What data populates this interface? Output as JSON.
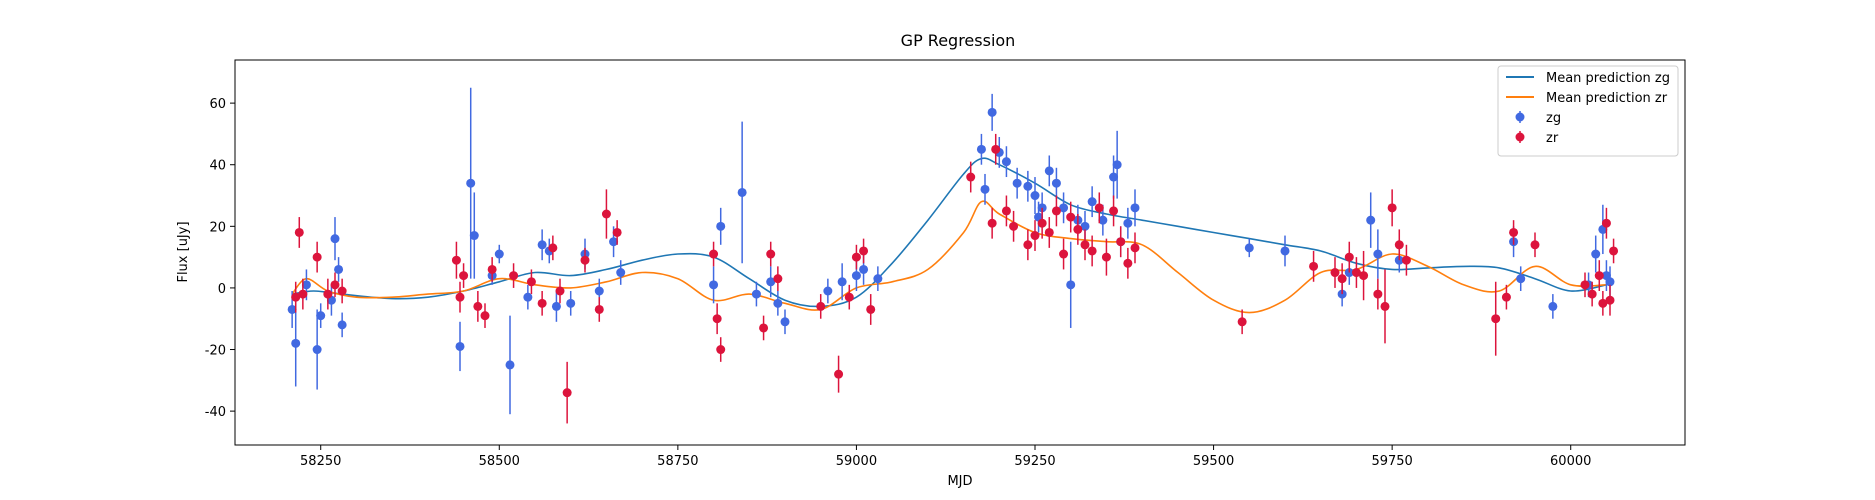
{
  "chart_data": {
    "type": "scatter",
    "title": "GP Regression",
    "xlabel": "MJD",
    "ylabel": "Flux [uJy]",
    "xlim": [
      58130,
      60160
    ],
    "ylim": [
      -51,
      74
    ],
    "xticks": [
      58250,
      58500,
      58750,
      59000,
      59250,
      59500,
      59750,
      60000
    ],
    "yticks": [
      -40,
      -20,
      0,
      20,
      40,
      60
    ],
    "grid": false,
    "legend_position": "top-right",
    "colors": {
      "zg_line": "#1f77b4",
      "zr_line": "#ff7f0e",
      "zg_points": "#4169e1",
      "zr_points": "#dc143c"
    },
    "legend": [
      {
        "label": "Mean prediction zg",
        "kind": "line",
        "color": "#1f77b4"
      },
      {
        "label": "Mean prediction zr",
        "kind": "line",
        "color": "#ff7f0e"
      },
      {
        "label": "zg",
        "kind": "errorbar",
        "color": "#4169e1"
      },
      {
        "label": "zr",
        "kind": "errorbar",
        "color": "#dc143c"
      }
    ],
    "series": [
      {
        "name": "Mean prediction zg",
        "kind": "line",
        "x": [
          58210,
          58240,
          58280,
          58320,
          58360,
          58400,
          58450,
          58500,
          58550,
          58600,
          58650,
          58700,
          58750,
          58800,
          58850,
          58900,
          58950,
          59000,
          59050,
          59100,
          59150,
          59175,
          59200,
          59250,
          59300,
          59350,
          59400,
          59450,
          59500,
          59550,
          59600,
          59650,
          59700,
          59750,
          59800,
          59850,
          59900,
          59950,
          60000,
          60050
        ],
        "y": [
          -2,
          -1,
          -2,
          -3,
          -3.5,
          -3,
          -1,
          2,
          5,
          4,
          6,
          9,
          11,
          10,
          3,
          -4,
          -6,
          -3,
          8,
          22,
          37,
          42,
          40,
          34,
          27,
          24,
          22,
          20,
          18,
          16,
          14,
          12,
          8,
          6,
          6.5,
          7,
          6.5,
          3,
          -1,
          1
        ]
      },
      {
        "name": "Mean prediction zr",
        "kind": "line",
        "x": [
          58210,
          58230,
          58260,
          58300,
          58350,
          58400,
          58450,
          58500,
          58550,
          58600,
          58650,
          58700,
          58750,
          58800,
          58850,
          58900,
          58950,
          59000,
          59050,
          59100,
          59150,
          59175,
          59200,
          59250,
          59300,
          59350,
          59400,
          59450,
          59500,
          59550,
          59600,
          59650,
          59700,
          59750,
          59800,
          59850,
          59900,
          59950,
          60000,
          60050
        ],
        "y": [
          -2,
          3,
          -1,
          -3,
          -3,
          -2,
          -1,
          3,
          1,
          0,
          2,
          5,
          3,
          -4,
          -2,
          -5,
          -7,
          0,
          2,
          6,
          18,
          28,
          24,
          18,
          16,
          15,
          14,
          5,
          -4,
          -8,
          -4,
          5,
          6,
          11,
          7,
          1,
          -1,
          7,
          1,
          1
        ]
      },
      {
        "name": "zg",
        "kind": "errorbar",
        "x": [
          58210,
          58215,
          58230,
          58245,
          58250,
          58265,
          58270,
          58275,
          58280,
          58445,
          58460,
          58465,
          58490,
          58500,
          58515,
          58540,
          58560,
          58570,
          58580,
          58600,
          58620,
          58640,
          58660,
          58670,
          58800,
          58810,
          58840,
          58860,
          58880,
          58890,
          58900,
          58960,
          58980,
          59000,
          59010,
          59030,
          59175,
          59180,
          59190,
          59200,
          59210,
          59225,
          59240,
          59250,
          59255,
          59260,
          59270,
          59280,
          59290,
          59300,
          59310,
          59320,
          59330,
          59345,
          59360,
          59365,
          59370,
          59380,
          59390,
          59550,
          59600,
          59680,
          59690,
          59720,
          59730,
          59760,
          59920,
          59930,
          59975,
          60025,
          60035,
          60045,
          60050,
          60055
        ],
        "y": [
          -7,
          -18,
          1,
          -20,
          -9,
          -4,
          16,
          6,
          -12,
          -19,
          34,
          17,
          4,
          11,
          -25,
          -3,
          14,
          12,
          -6,
          -5,
          11,
          -1,
          15,
          5,
          1,
          20,
          31,
          -2,
          2,
          -5,
          -11,
          -1,
          2,
          4,
          6,
          3,
          45,
          32,
          57,
          44,
          41,
          34,
          33,
          30,
          23,
          26,
          38,
          34,
          26,
          1,
          22,
          20,
          28,
          22,
          36,
          40,
          15,
          21,
          26,
          13,
          12,
          -2,
          5,
          22,
          11,
          9,
          15,
          3,
          -6,
          1,
          11,
          19,
          4,
          2
        ],
        "err": [
          6,
          14,
          5,
          13,
          4,
          5,
          7,
          4,
          4,
          8,
          31,
          14,
          3,
          3,
          16,
          4,
          5,
          4,
          5,
          4,
          5,
          4,
          5,
          4,
          6,
          6,
          23,
          4,
          5,
          4,
          4,
          4,
          6,
          5,
          5,
          4,
          5,
          5,
          6,
          5,
          5,
          5,
          5,
          6,
          5,
          5,
          5,
          5,
          5,
          14,
          5,
          5,
          5,
          5,
          7,
          11,
          5,
          5,
          6,
          3,
          5,
          4,
          4,
          9,
          8,
          4,
          5,
          4,
          4,
          4,
          6,
          8,
          5,
          5
        ]
      },
      {
        "name": "zr",
        "kind": "errorbar",
        "x": [
          58215,
          58220,
          58225,
          58245,
          58260,
          58270,
          58280,
          58440,
          58445,
          58450,
          58470,
          58480,
          58490,
          58520,
          58545,
          58560,
          58575,
          58585,
          58595,
          58620,
          58640,
          58650,
          58665,
          58800,
          58805,
          58810,
          58870,
          58880,
          58890,
          58950,
          58975,
          58990,
          59000,
          59010,
          59020,
          59160,
          59190,
          59195,
          59210,
          59220,
          59240,
          59250,
          59260,
          59270,
          59280,
          59290,
          59300,
          59310,
          59320,
          59330,
          59340,
          59350,
          59360,
          59370,
          59380,
          59390,
          59540,
          59640,
          59670,
          59680,
          59690,
          59700,
          59710,
          59730,
          59740,
          59750,
          59760,
          59770,
          59895,
          59910,
          59920,
          59950,
          60020,
          60030,
          60040,
          60045,
          60050,
          60055,
          60060
        ],
        "y": [
          -3,
          18,
          -2,
          10,
          -2,
          1,
          -1,
          9,
          -3,
          4,
          -6,
          -9,
          6,
          4,
          2,
          -5,
          13,
          -1,
          -34,
          9,
          -7,
          24,
          18,
          11,
          -10,
          -20,
          -13,
          11,
          3,
          -6,
          -28,
          -3,
          10,
          12,
          -7,
          36,
          21,
          45,
          25,
          20,
          14,
          17,
          21,
          18,
          25,
          11,
          23,
          19,
          14,
          12,
          26,
          10,
          25,
          15,
          8,
          13,
          -11,
          7,
          5,
          3,
          10,
          5,
          4,
          -2,
          -6,
          26,
          14,
          9,
          -10,
          -3,
          18,
          14,
          1,
          -2,
          4,
          -5,
          21,
          -4,
          12
        ],
        "err": [
          5,
          5,
          5,
          5,
          5,
          4,
          4,
          6,
          5,
          4,
          5,
          4,
          4,
          4,
          4,
          4,
          4,
          4,
          10,
          4,
          4,
          8,
          4,
          4,
          5,
          4,
          4,
          4,
          4,
          4,
          6,
          4,
          4,
          4,
          5,
          5,
          5,
          5,
          5,
          5,
          5,
          5,
          5,
          5,
          5,
          5,
          5,
          5,
          5,
          5,
          5,
          6,
          5,
          5,
          5,
          5,
          4,
          5,
          5,
          5,
          5,
          5,
          8,
          5,
          12,
          6,
          5,
          5,
          12,
          4,
          4,
          4,
          4,
          4,
          5,
          4,
          5,
          5,
          4
        ]
      }
    ]
  }
}
